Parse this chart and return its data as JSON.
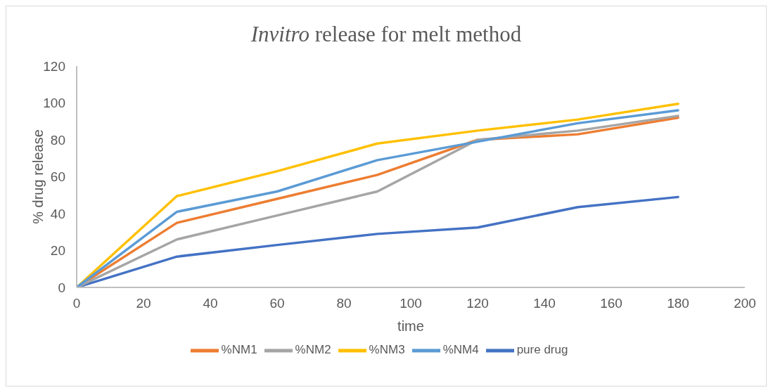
{
  "chart_data": {
    "type": "line",
    "title": "Invitro release for melt method",
    "xlabel": "time",
    "ylabel": "% drug release",
    "x": [
      0,
      30,
      60,
      90,
      120,
      150,
      180
    ],
    "series": [
      {
        "name": "pure drug",
        "color": "#4472c4",
        "values": [
          0,
          16.7,
          23,
          29,
          32.5,
          43.5,
          49
        ]
      },
      {
        "name": "%NM1",
        "color": "#ed7d31",
        "values": [
          0,
          35,
          48,
          61,
          80,
          83,
          92
        ]
      },
      {
        "name": "%NM2",
        "color": "#a5a5a5",
        "values": [
          0,
          26,
          39,
          52,
          80,
          85,
          93
        ]
      },
      {
        "name": "%NM3",
        "color": "#ffc000",
        "values": [
          0,
          49.5,
          63,
          78,
          85,
          91,
          99.5
        ]
      },
      {
        "name": "%NM4",
        "color": "#5b9bd5",
        "values": [
          0,
          41,
          52,
          69,
          79,
          89,
          96
        ]
      }
    ],
    "xlim": [
      0,
      200
    ],
    "xticks": [
      0,
      20,
      40,
      60,
      80,
      100,
      120,
      140,
      160,
      180,
      200
    ],
    "ylim": [
      0,
      120
    ],
    "yticks": [
      0,
      20,
      40,
      60,
      80,
      100,
      120
    ],
    "grid": false,
    "legend": "bottom",
    "marker": "none",
    "line_style": "solid"
  }
}
